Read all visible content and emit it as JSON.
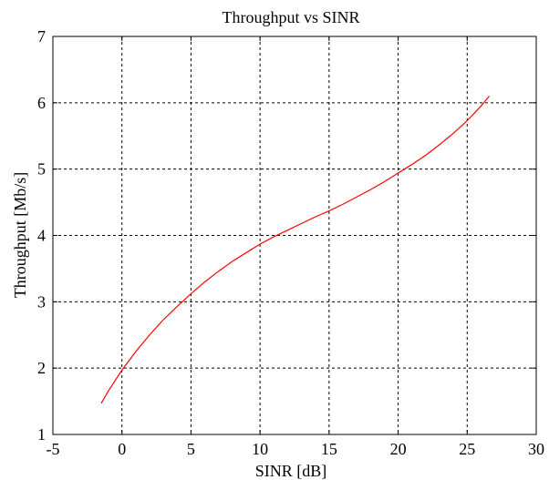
{
  "chart_data": {
    "type": "line",
    "title": "Throughput vs SINR",
    "xlabel": "SINR [dB]",
    "ylabel": "Throughput [Mb/s]",
    "xlim": [
      -5,
      30
    ],
    "ylim": [
      1,
      7
    ],
    "xticks": [
      -5,
      0,
      5,
      10,
      15,
      20,
      25,
      30
    ],
    "yticks": [
      1,
      2,
      3,
      4,
      5,
      6,
      7
    ],
    "xtick_labels": [
      "-5",
      "0",
      "5",
      "10",
      "15",
      "20",
      "25",
      "30"
    ],
    "ytick_labels": [
      "1",
      "2",
      "3",
      "4",
      "5",
      "6",
      "7"
    ],
    "grid": true,
    "line_color": "#ff0000",
    "series": [
      {
        "x": [
          -1.5,
          -1,
          0,
          1,
          2,
          3,
          4,
          5,
          6,
          7,
          8,
          9,
          10,
          11,
          12,
          13,
          14,
          15,
          16,
          17,
          18,
          19,
          20,
          21,
          22,
          23,
          24,
          25,
          26,
          26.6
        ],
        "y": [
          1.47,
          1.65,
          1.97,
          2.25,
          2.5,
          2.73,
          2.93,
          3.12,
          3.3,
          3.46,
          3.61,
          3.74,
          3.87,
          3.98,
          4.08,
          4.18,
          4.28,
          4.37,
          4.47,
          4.58,
          4.69,
          4.81,
          4.94,
          5.07,
          5.21,
          5.37,
          5.54,
          5.73,
          5.95,
          6.1
        ]
      }
    ]
  }
}
